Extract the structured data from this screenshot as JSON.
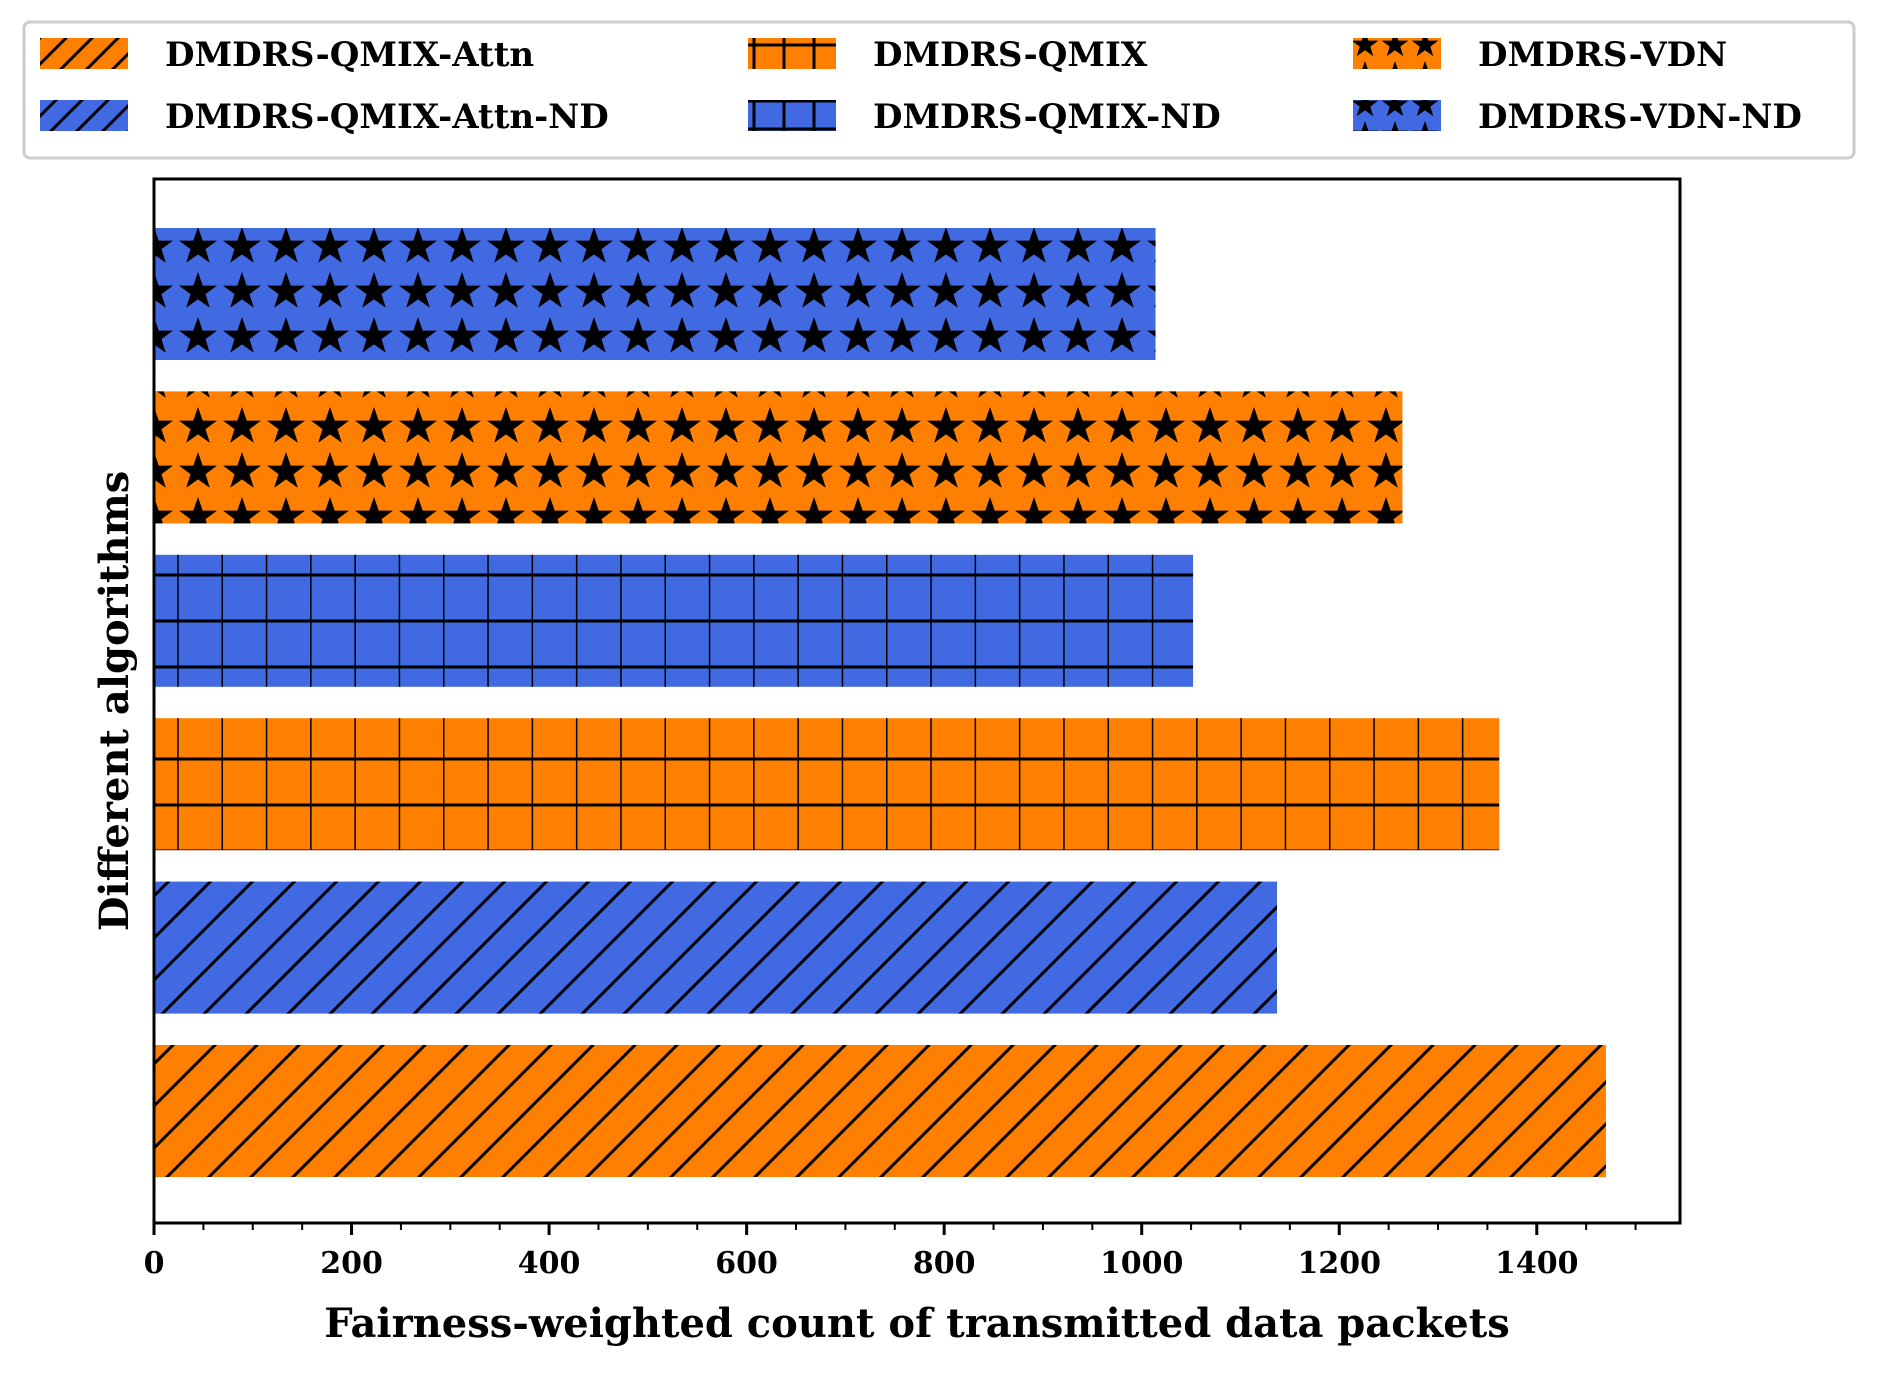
{
  "chart_data": {
    "type": "bar",
    "orientation": "horizontal",
    "title": "",
    "xlabel": "Fairness-weighted count of transmitted data packets",
    "ylabel": "Different algorithms",
    "xlim": [
      0,
      1545
    ],
    "x_ticks": [
      0,
      200,
      400,
      600,
      800,
      1000,
      1200,
      1400
    ],
    "grid": false,
    "legend_position": "top",
    "colors": {
      "orange": "#ff8000",
      "blue": "#4169e1"
    },
    "series": [
      {
        "name": "DMDRS-QMIX-Attn",
        "value": 1470,
        "color": "#ff8000",
        "hatch": "diagonal"
      },
      {
        "name": "DMDRS-QMIX-Attn-ND",
        "value": 1137,
        "color": "#4169e1",
        "hatch": "diagonal"
      },
      {
        "name": "DMDRS-QMIX",
        "value": 1362,
        "color": "#ff8000",
        "hatch": "grid"
      },
      {
        "name": "DMDRS-QMIX-ND",
        "value": 1052,
        "color": "#4169e1",
        "hatch": "grid"
      },
      {
        "name": "DMDRS-VDN",
        "value": 1264,
        "color": "#ff8000",
        "hatch": "stars"
      },
      {
        "name": "DMDRS-VDN-ND",
        "value": 1014,
        "color": "#4169e1",
        "hatch": "stars"
      }
    ],
    "legend_order": [
      "DMDRS-QMIX-Attn",
      "DMDRS-QMIX",
      "DMDRS-VDN",
      "DMDRS-QMIX-Attn-ND",
      "DMDRS-QMIX-ND",
      "DMDRS-VDN-ND"
    ]
  }
}
